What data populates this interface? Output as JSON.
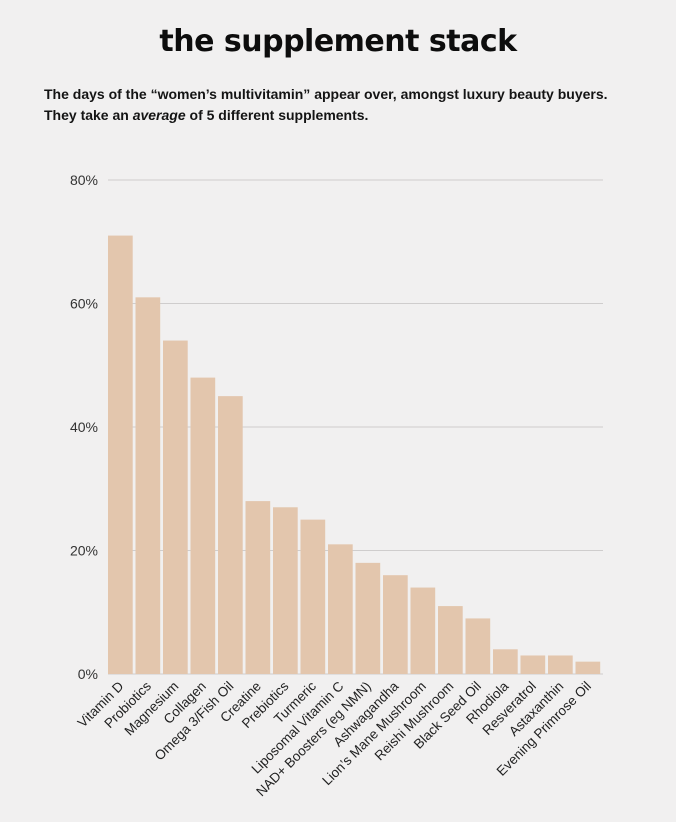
{
  "page": {
    "title": "the supplement stack",
    "subtitle_line1": "The days of the “women’s multivitamin” appear over, amongst luxury beauty buyers.",
    "subtitle_line2_pre": "They take an ",
    "subtitle_line2_em": "average",
    "subtitle_line2_post": " of 5 different supplements."
  },
  "colors": {
    "bar": "#e3c6ad",
    "grid": "#cfcdcd",
    "background": "#f1f0f0"
  },
  "chart_data": {
    "type": "bar",
    "title": "the supplement stack",
    "xlabel": "",
    "ylabel": "",
    "ylim": [
      0,
      80
    ],
    "yticks": [
      0,
      20,
      40,
      60,
      80
    ],
    "ytick_labels": [
      "0%",
      "20%",
      "40%",
      "60%",
      "80%"
    ],
    "grid": true,
    "categories": [
      "Vitamin D",
      "Probiotics",
      "Magnesium",
      "Collagen",
      "Omega 3/Fish Oil",
      "Creatine",
      "Prebiotics",
      "Turmeric",
      "Liposomal Vitamin C",
      "NAD+ Boosters (eg NMN)",
      "Ashwagandha",
      "Lion’s Mane Mushroom",
      "Reishi Mushroom",
      "Black Seed Oil",
      "Rhodiola",
      "Resveratrol",
      "Astaxanthin",
      "Evening Primrose Oil"
    ],
    "values": [
      71,
      61,
      54,
      48,
      45,
      28,
      27,
      25,
      21,
      18,
      16,
      14,
      11,
      9,
      4,
      3,
      3,
      2
    ]
  }
}
